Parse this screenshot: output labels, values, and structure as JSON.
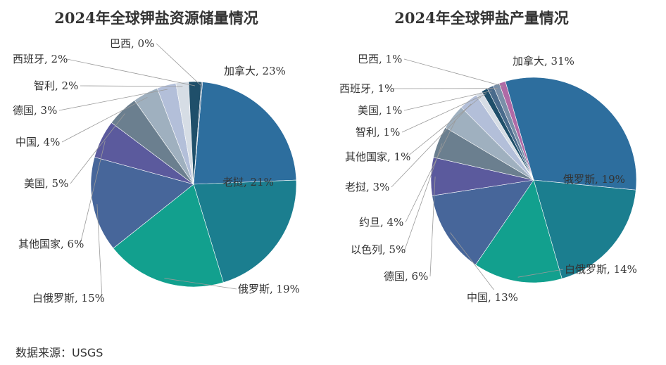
{
  "chart_data": [
    {
      "type": "pie",
      "title": "2024年全球钾盐资源储量情况",
      "slices": [
        {
          "label": "加拿大, 23%",
          "value": 23,
          "color": "#2d6e9e"
        },
        {
          "label": "老挝, 21%",
          "value": 21,
          "color": "#1b7e8f"
        },
        {
          "label": "俄罗斯, 19%",
          "value": 19,
          "color": "#12a08e"
        },
        {
          "label": "白俄罗斯, 15%",
          "value": 15,
          "color": "#47669a"
        },
        {
          "label": "其他国家, 6%",
          "value": 6,
          "color": "#5b5a9d"
        },
        {
          "label": "美国, 5%",
          "value": 5,
          "color": "#6b7f8f"
        },
        {
          "label": "中国, 4%",
          "value": 4,
          "color": "#9fb0bf"
        },
        {
          "label": "德国, 3%",
          "value": 3,
          "color": "#b3bfd9"
        },
        {
          "label": "智利, 2%",
          "value": 2,
          "color": "#d6dde5"
        },
        {
          "label": "西班牙, 2%",
          "value": 2,
          "color": "#1f4f6a"
        },
        {
          "label": "巴西, 0%",
          "value": 0,
          "color": "#4a6b8c"
        }
      ]
    },
    {
      "type": "pie",
      "title": "2024年全球钾盐产量情况",
      "slices": [
        {
          "label": "加拿大, 31%",
          "value": 31,
          "color": "#2d6e9e"
        },
        {
          "label": "俄罗斯, 19%",
          "value": 19,
          "color": "#1b7e8f"
        },
        {
          "label": "白俄罗斯, 14%",
          "value": 14,
          "color": "#12a08e"
        },
        {
          "label": "中国, 13%",
          "value": 13,
          "color": "#47669a"
        },
        {
          "label": "德国, 6%",
          "value": 6,
          "color": "#5b5a9d"
        },
        {
          "label": "以色列, 5%",
          "value": 5,
          "color": "#6b7f8f"
        },
        {
          "label": "约旦, 4%",
          "value": 4,
          "color": "#9fb0bf"
        },
        {
          "label": "老挝, 3%",
          "value": 3,
          "color": "#b3bfd9"
        },
        {
          "label": "其他国家, 1%",
          "value": 1,
          "color": "#d6dde5"
        },
        {
          "label": "智利, 1%",
          "value": 1,
          "color": "#1f4f6a"
        },
        {
          "label": "美国, 1%",
          "value": 1,
          "color": "#4a6b8c"
        },
        {
          "label": "西班牙, 1%",
          "value": 1,
          "color": "#7a8fa8"
        },
        {
          "label": "巴西, 1%",
          "value": 1,
          "color": "#b06aa6"
        }
      ]
    }
  ],
  "footer": {
    "source": "数据来源：USGS"
  }
}
